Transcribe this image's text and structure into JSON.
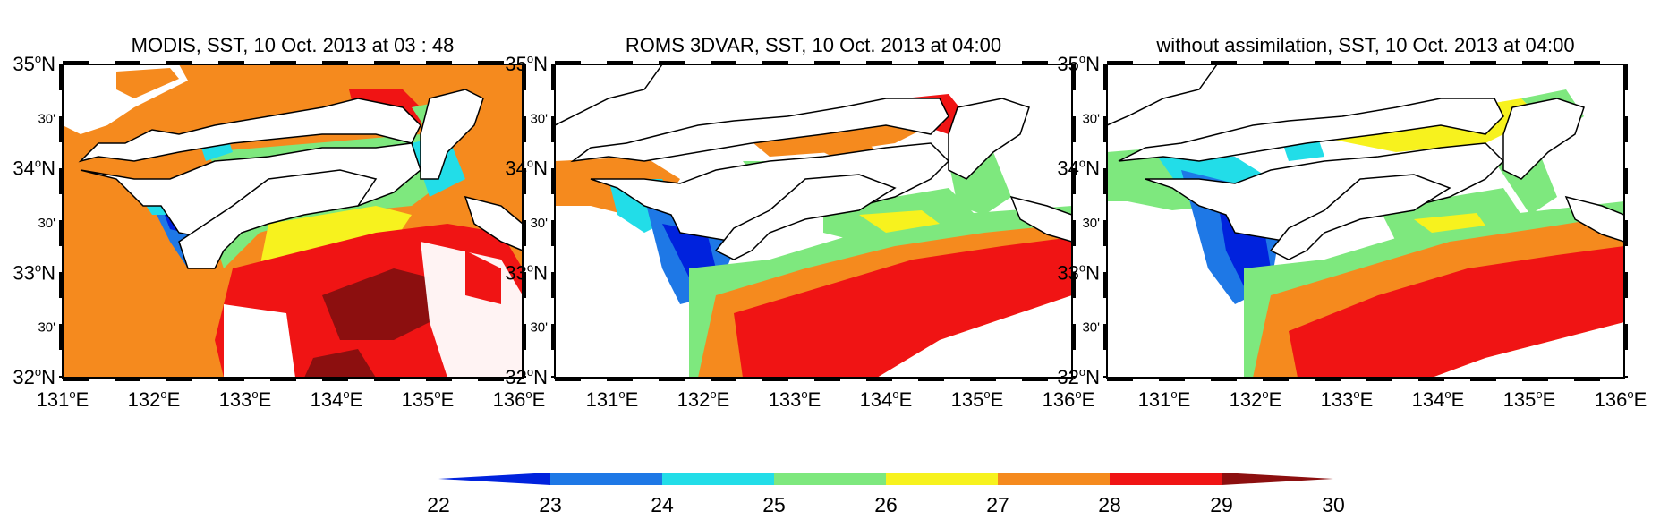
{
  "panels": [
    {
      "title": "MODIS, SST, 10  Oct. 2013  at  03 : 48",
      "field": "modis"
    },
    {
      "title": "ROMS 3DVAR, SST, 10  Oct. 2013  at  04:00",
      "field": "roms"
    },
    {
      "title": "without assimilation, SST, 10  Oct. 2013  at  04:00",
      "field": "noassim"
    }
  ],
  "lat_labels": [
    {
      "deg": "35",
      "unit": "N",
      "minor": false
    },
    {
      "deg": "30'",
      "unit": "",
      "minor": true
    },
    {
      "deg": "34",
      "unit": "N",
      "minor": false
    },
    {
      "deg": "30'",
      "unit": "",
      "minor": true
    },
    {
      "deg": "33",
      "unit": "N",
      "minor": false
    },
    {
      "deg": "30'",
      "unit": "",
      "minor": true
    },
    {
      "deg": "32",
      "unit": "N",
      "minor": false
    }
  ],
  "lon_labels": [
    "131",
    "132",
    "133",
    "134",
    "135",
    "136"
  ],
  "lon_unit": "E",
  "degree_symbol": "o",
  "colorbar": {
    "ticks": [
      "22",
      "23",
      "24",
      "25",
      "26",
      "27",
      "28",
      "29",
      "30"
    ],
    "colors": [
      "#0022dd",
      "#1e78e6",
      "#22dde8",
      "#7ee87e",
      "#f7f21e",
      "#f58a1e",
      "#f01414",
      "#8c0f0f"
    ]
  },
  "map_extent": {
    "lon": [
      131,
      136
    ],
    "lat": [
      32,
      35
    ]
  },
  "land_color": "#ffffff",
  "coast_color": "#000000"
}
